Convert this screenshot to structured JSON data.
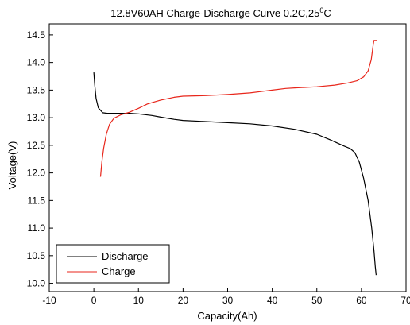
{
  "chart_data": {
    "type": "line",
    "title": {
      "main": "12.8V60AH Charge-Discharge Curve  0.2C,25",
      "superscript": "0",
      "suffix": "C"
    },
    "xlabel": "Capacity(Ah)",
    "ylabel": "Voltage(V)",
    "xlim": [
      -10,
      70
    ],
    "ylim": [
      9.85,
      14.7
    ],
    "x_ticks": [
      -10,
      0,
      10,
      20,
      30,
      40,
      50,
      60,
      70
    ],
    "x_tick_labels": [
      "-10",
      "0",
      "10",
      "20",
      "30",
      "40",
      "50",
      "60",
      "70"
    ],
    "y_ticks": [
      10.0,
      10.5,
      11.0,
      11.5,
      12.0,
      12.5,
      13.0,
      13.5,
      14.0,
      14.5
    ],
    "y_tick_labels": [
      "10.0",
      "10.5",
      "11.0",
      "11.5",
      "12.0",
      "12.5",
      "13.0",
      "13.5",
      "14.0",
      "14.5"
    ],
    "legend_position": "bottom-left",
    "grid": false,
    "series": [
      {
        "name": "Discharge",
        "color": "#000000",
        "points": [
          [
            0,
            13.82
          ],
          [
            0.2,
            13.6
          ],
          [
            0.5,
            13.35
          ],
          [
            1,
            13.18
          ],
          [
            2,
            13.09
          ],
          [
            3,
            13.08
          ],
          [
            5,
            13.08
          ],
          [
            8,
            13.08
          ],
          [
            10,
            13.07
          ],
          [
            13,
            13.04
          ],
          [
            15,
            13.01
          ],
          [
            18,
            12.97
          ],
          [
            20,
            12.95
          ],
          [
            25,
            12.93
          ],
          [
            30,
            12.91
          ],
          [
            35,
            12.89
          ],
          [
            40,
            12.85
          ],
          [
            45,
            12.79
          ],
          [
            50,
            12.7
          ],
          [
            53,
            12.6
          ],
          [
            56,
            12.49
          ],
          [
            57.5,
            12.44
          ],
          [
            58.5,
            12.37
          ],
          [
            59.5,
            12.2
          ],
          [
            60.5,
            11.9
          ],
          [
            61.5,
            11.5
          ],
          [
            62.3,
            11.0
          ],
          [
            62.8,
            10.6
          ],
          [
            63.1,
            10.3
          ],
          [
            63.3,
            10.15
          ]
        ]
      },
      {
        "name": "Charge",
        "color": "#e8261b",
        "points": [
          [
            1.5,
            11.93
          ],
          [
            1.8,
            12.2
          ],
          [
            2.2,
            12.45
          ],
          [
            2.8,
            12.7
          ],
          [
            3.5,
            12.88
          ],
          [
            4.5,
            12.99
          ],
          [
            6,
            13.05
          ],
          [
            8,
            13.1
          ],
          [
            10,
            13.17
          ],
          [
            12,
            13.25
          ],
          [
            15,
            13.32
          ],
          [
            18,
            13.37
          ],
          [
            20,
            13.39
          ],
          [
            25,
            13.4
          ],
          [
            30,
            13.42
          ],
          [
            35,
            13.45
          ],
          [
            38,
            13.48
          ],
          [
            40,
            13.5
          ],
          [
            43,
            13.53
          ],
          [
            45,
            13.54
          ],
          [
            50,
            13.56
          ],
          [
            54,
            13.59
          ],
          [
            57,
            13.63
          ],
          [
            59,
            13.67
          ],
          [
            60.5,
            13.74
          ],
          [
            61.5,
            13.85
          ],
          [
            62.2,
            14.05
          ],
          [
            62.6,
            14.3
          ],
          [
            62.8,
            14.4
          ],
          [
            63.5,
            14.4
          ]
        ]
      }
    ]
  }
}
